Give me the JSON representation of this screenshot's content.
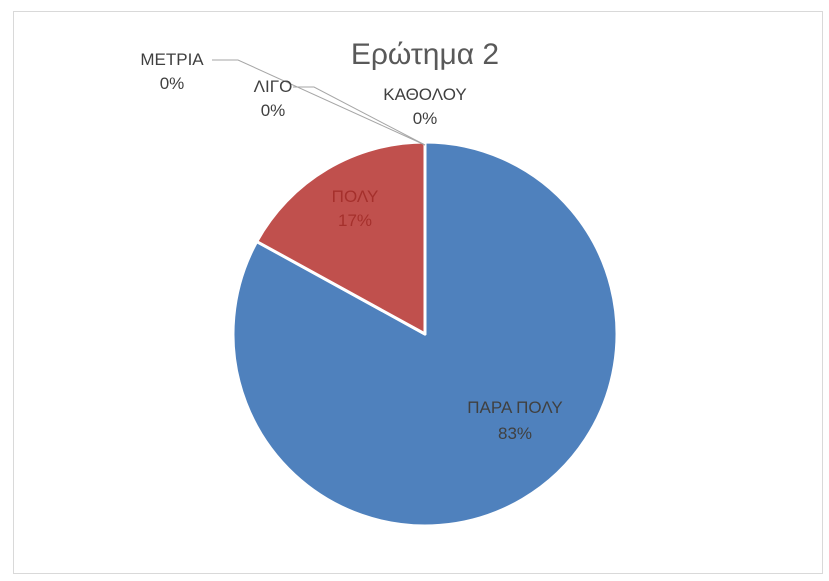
{
  "chart_data": {
    "type": "pie",
    "title": "Ερώτημα 2",
    "categories": [
      "ΠΑΡΑ ΠΟΛΥ",
      "ΠΟΛΥ",
      "ΜΕΤΡΙΑ",
      "ΛΙΓΟ",
      "ΚΑΘΟΛΟΥ"
    ],
    "values": [
      83,
      17,
      0,
      0,
      0
    ],
    "value_labels": [
      "83%",
      "17%",
      "0%",
      "0%",
      "0%"
    ],
    "colors": [
      "#4f81bd",
      "#c0504d",
      "#9bbb59",
      "#8064a2",
      "#4bacc6"
    ],
    "legend": "none"
  }
}
